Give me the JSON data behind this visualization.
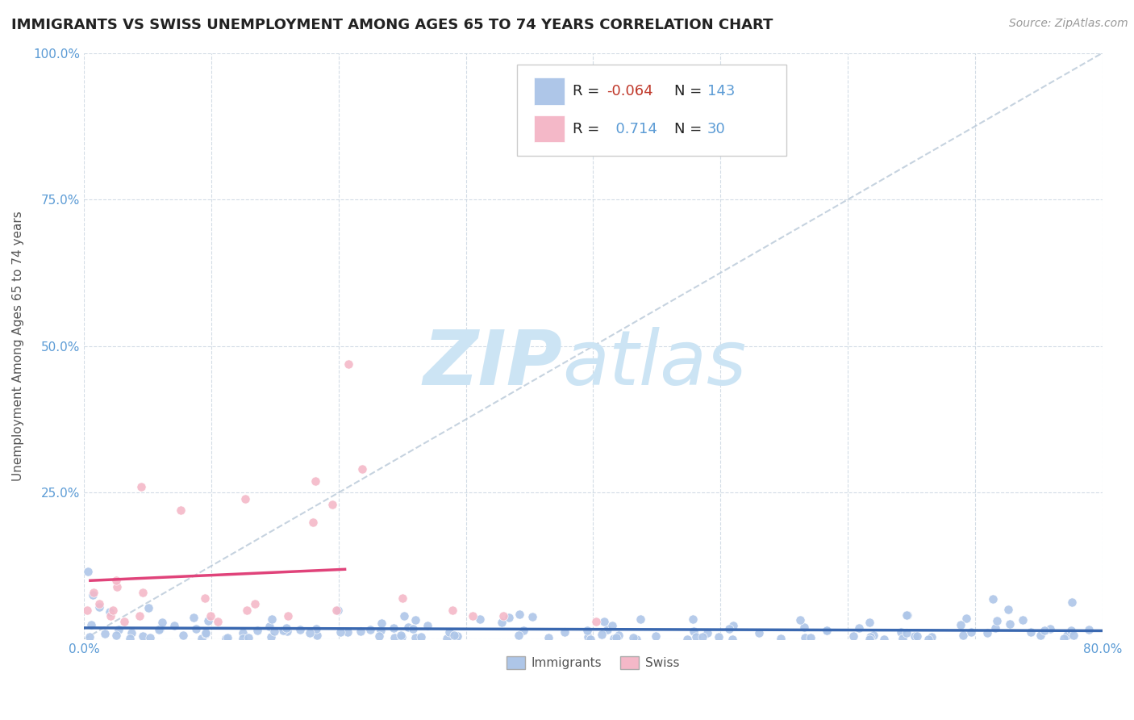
{
  "title": "IMMIGRANTS VS SWISS UNEMPLOYMENT AMONG AGES 65 TO 74 YEARS CORRELATION CHART",
  "source": "Source: ZipAtlas.com",
  "ylabel": "Unemployment Among Ages 65 to 74 years",
  "xlim": [
    0.0,
    0.8
  ],
  "ylim": [
    0.0,
    1.0
  ],
  "legend_R_immigrants": "-0.064",
  "legend_N_immigrants": "143",
  "legend_R_swiss": "0.714",
  "legend_N_swiss": "30",
  "immigrants_color": "#aec6e8",
  "swiss_color": "#f4b8c8",
  "immigrants_line_color": "#3a68b0",
  "swiss_line_color": "#e0437a",
  "ref_line_color": "#b8c8d8",
  "watermark_zip": "ZIP",
  "watermark_atlas": "atlas",
  "watermark_color": "#cce4f4",
  "background_color": "#ffffff",
  "grid_color": "#c8d4e0",
  "title_fontsize": 13,
  "source_fontsize": 10
}
